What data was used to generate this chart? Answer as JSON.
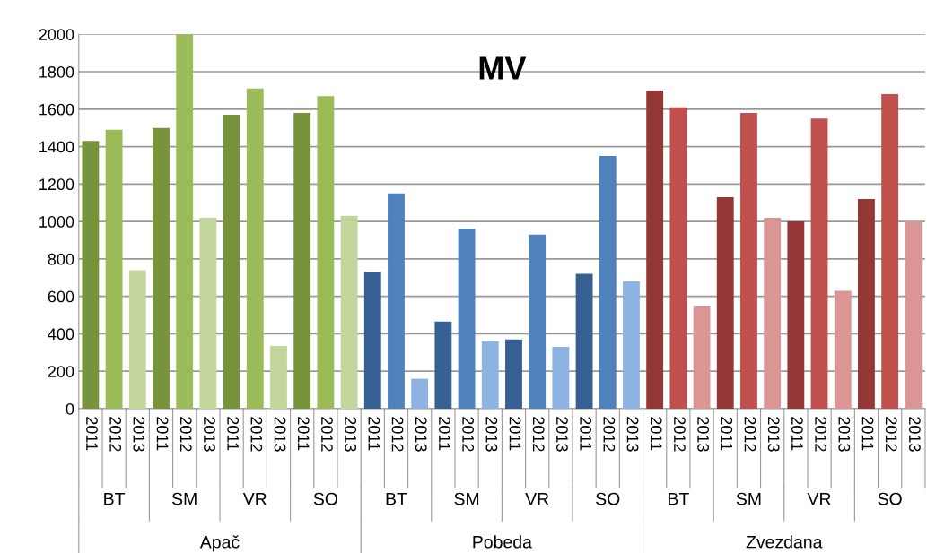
{
  "chart_data": {
    "type": "bar",
    "title": "MV",
    "categories": [
      "2011",
      "2012",
      "2013",
      "2011",
      "2012",
      "2013",
      "2011",
      "2012",
      "2013",
      "2011",
      "2012",
      "2013",
      "2011",
      "2012",
      "2013",
      "2011",
      "2012",
      "2013",
      "2011",
      "2012",
      "2013",
      "2011",
      "2012",
      "2013",
      "2011",
      "2012",
      "2013",
      "2011",
      "2012",
      "2013",
      "2011",
      "2012",
      "2013",
      "2011",
      "2012",
      "2013"
    ],
    "values": [
      1430,
      1490,
      740,
      1500,
      2000,
      1020,
      1570,
      1710,
      335,
      1580,
      1670,
      1030,
      730,
      1150,
      160,
      465,
      960,
      360,
      370,
      930,
      330,
      720,
      1350,
      680,
      1700,
      1610,
      550,
      1130,
      1580,
      1020,
      1000,
      1550,
      630,
      1120,
      1680,
      1000
    ],
    "colors": [
      "#77933c",
      "#9bbb59",
      "#c3d69b",
      "#77933c",
      "#9bbb59",
      "#c3d69b",
      "#77933c",
      "#9bbb59",
      "#c3d69b",
      "#77933c",
      "#9bbb59",
      "#c3d69b",
      "#376092",
      "#4f81bd",
      "#8db3e2",
      "#376092",
      "#4f81bd",
      "#8db3e2",
      "#376092",
      "#4f81bd",
      "#8db3e2",
      "#376092",
      "#4f81bd",
      "#8db3e2",
      "#953735",
      "#c0504d",
      "#d99694",
      "#953735",
      "#c0504d",
      "#d99694",
      "#953735",
      "#c0504d",
      "#d99694",
      "#953735",
      "#c0504d",
      "#d99694"
    ],
    "annotations": [
      "BT",
      "SM",
      "VR",
      "SO",
      "BT",
      "SM",
      "VR",
      "SO",
      "BT",
      "SM",
      "VR",
      "SO",
      "Apač",
      "Pobeda",
      "Zvezdana"
    ],
    "ylim": [
      0,
      2000
    ],
    "yticks": [
      0,
      200,
      400,
      600,
      800,
      1000,
      1200,
      1400,
      1600,
      1800,
      2000
    ],
    "grid": "y"
  }
}
